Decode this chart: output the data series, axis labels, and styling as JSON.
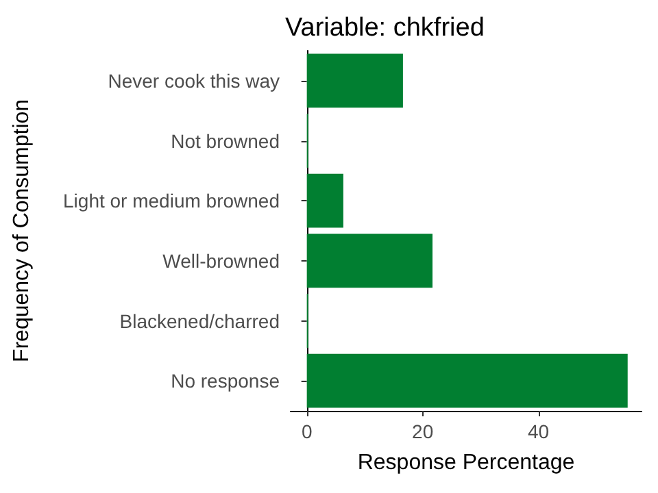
{
  "chart_data": {
    "type": "bar",
    "orientation": "horizontal",
    "title": "Variable: chkfried",
    "xlabel": "Response Percentage",
    "ylabel": "Frequency of Consumption",
    "categories": [
      "Never cook this way",
      "Not browned",
      "Light or medium browned",
      "Well-browned",
      "Blackened/charred",
      "No response"
    ],
    "values": [
      16.6,
      0.1,
      6.3,
      21.7,
      0.1,
      55.4
    ],
    "color": "#017f31",
    "xlim": [
      -2.8,
      57.8
    ],
    "xticks": [
      0,
      20,
      40
    ],
    "grid": false
  }
}
